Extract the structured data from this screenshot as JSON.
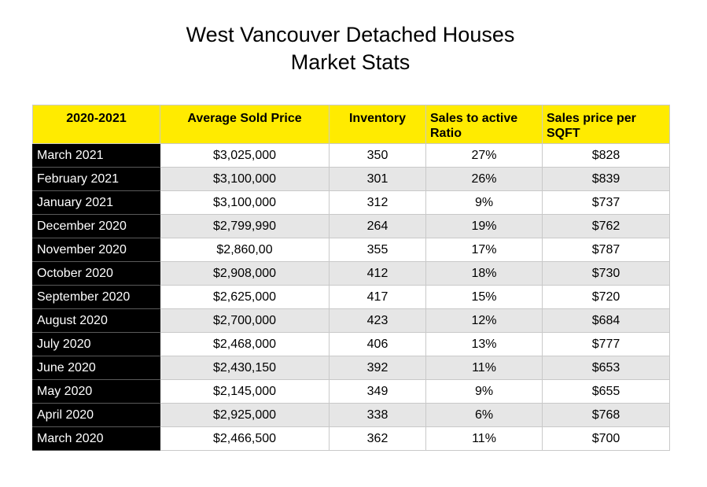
{
  "title": {
    "line1": "West Vancouver Detached Houses",
    "line2": "Market Stats"
  },
  "table": {
    "headers": [
      "2020-2021",
      "Average Sold Price",
      "Inventory",
      "Sales to active Ratio",
      "Sales price per SQFT"
    ],
    "rows": [
      {
        "period": "March 2021",
        "price": "$3,025,000",
        "inventory": "350",
        "ratio": "27%",
        "sqft": "$828"
      },
      {
        "period": "February 2021",
        "price": "$3,100,000",
        "inventory": "301",
        "ratio": "26%",
        "sqft": "$839"
      },
      {
        "period": "January 2021",
        "price": "$3,100,000",
        "inventory": "312",
        "ratio": "9%",
        "sqft": "$737"
      },
      {
        "period": "December 2020",
        "price": "$2,799,990",
        "inventory": "264",
        "ratio": "19%",
        "sqft": "$762"
      },
      {
        "period": "November 2020",
        "price": "$2,860,00",
        "inventory": "355",
        "ratio": "17%",
        "sqft": "$787"
      },
      {
        "period": "October 2020",
        "price": "$2,908,000",
        "inventory": "412",
        "ratio": "18%",
        "sqft": "$730"
      },
      {
        "period": "September 2020",
        "price": "$2,625,000",
        "inventory": "417",
        "ratio": "15%",
        "sqft": "$720"
      },
      {
        "period": "August 2020",
        "price": "$2,700,000",
        "inventory": "423",
        "ratio": "12%",
        "sqft": "$684"
      },
      {
        "period": "July 2020",
        "price": "$2,468,000",
        "inventory": "406",
        "ratio": "13%",
        "sqft": "$777"
      },
      {
        "period": "June 2020",
        "price": "$2,430,150",
        "inventory": "392",
        "ratio": "11%",
        "sqft": "$653"
      },
      {
        "period": "May 2020",
        "price": "$2,145,000",
        "inventory": "349",
        "ratio": "9%",
        "sqft": "$655"
      },
      {
        "period": "April 2020",
        "price": "$2,925,000",
        "inventory": "338",
        "ratio": "6%",
        "sqft": "$768"
      },
      {
        "period": "March 2020",
        "price": "$2,466,500",
        "inventory": "362",
        "ratio": "11%",
        "sqft": "$700"
      }
    ]
  },
  "colors": {
    "header_bg": "#ffeb00",
    "month_bg": "#000000",
    "stripe_bg": "#e6e6e6"
  }
}
